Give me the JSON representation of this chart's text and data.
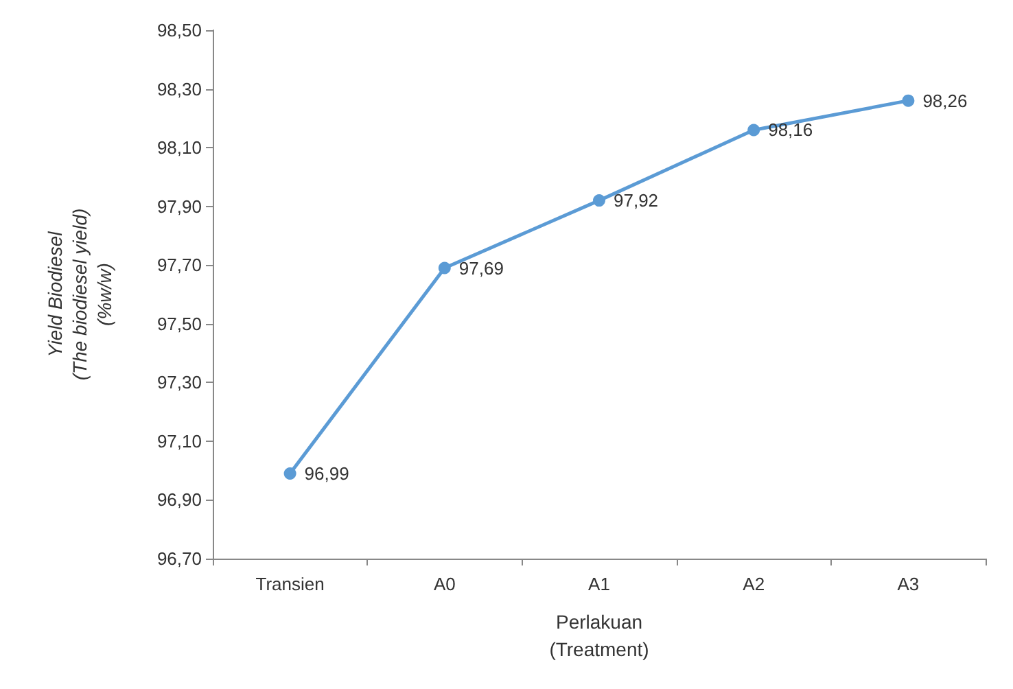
{
  "chart_data": {
    "type": "line",
    "xlabel": "Perlakuan\n(Treatment)",
    "ylabel": "Yield Biodiesel\n(The biodiesel yield)\n(%w/w)",
    "categories": [
      "Transien",
      "A0",
      "A1",
      "A2",
      "A3"
    ],
    "series": [
      {
        "color": "#5b9bd5",
        "values": [
          96.99,
          97.69,
          97.92,
          98.16,
          98.26
        ],
        "value_labels": [
          "96,99",
          "97,69",
          "97,92",
          "98,16",
          "98,26"
        ]
      }
    ],
    "ylim": [
      96.7,
      98.5
    ],
    "yticks": [
      {
        "value": 96.7,
        "label": "96,70"
      },
      {
        "value": 96.9,
        "label": "96,90"
      },
      {
        "value": 97.1,
        "label": "97,10"
      },
      {
        "value": 97.3,
        "label": "97,30"
      },
      {
        "value": 97.5,
        "label": "97,50"
      },
      {
        "value": 97.7,
        "label": "97,70"
      },
      {
        "value": 97.9,
        "label": "97,90"
      },
      {
        "value": 98.1,
        "label": "98,10"
      },
      {
        "value": 98.3,
        "label": "98,30"
      },
      {
        "value": 98.5,
        "label": "98,50"
      }
    ],
    "grid": false,
    "marker": "circle",
    "line_style": "solid"
  }
}
